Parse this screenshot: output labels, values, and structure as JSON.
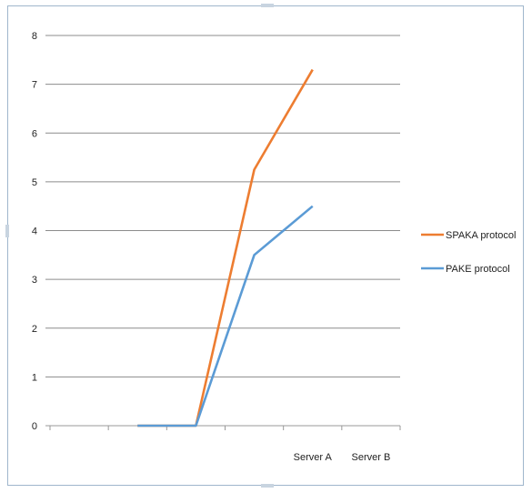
{
  "chart_data": {
    "type": "line",
    "categories": [
      "",
      "",
      "Server A",
      "Server B"
    ],
    "x_label_slots": [
      "",
      "",
      "",
      "",
      "Server A",
      "Server B"
    ],
    "ylim": [
      0,
      8
    ],
    "yticks": [
      "0",
      "1",
      "2",
      "3",
      "4",
      "5",
      "6",
      "7",
      "8"
    ],
    "grid": true,
    "legend": "right",
    "series": [
      {
        "name": "SPAKA protocol",
        "color": "#ed7d31",
        "x": [
          0,
          1,
          2,
          3
        ],
        "values": [
          0,
          0,
          5.25,
          7.3
        ]
      },
      {
        "name": "PAKE protocol",
        "color": "#5b9bd5",
        "x": [
          0,
          1,
          2,
          3
        ],
        "values": [
          0,
          0,
          3.5,
          4.5
        ]
      }
    ]
  }
}
